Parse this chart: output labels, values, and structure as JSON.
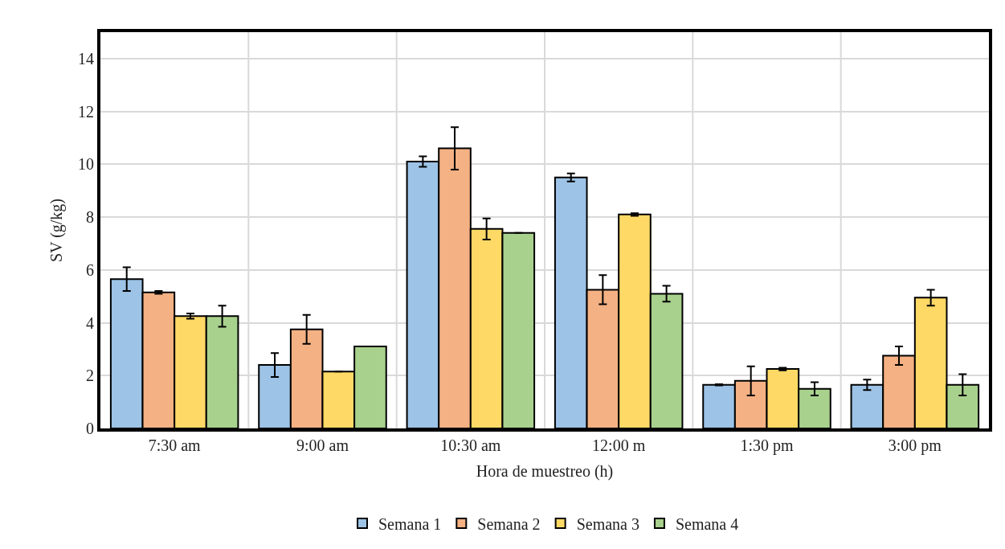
{
  "chart_data": {
    "type": "bar",
    "xlabel": "Hora de muestreo (h)",
    "ylabel": "SV (g/kg)",
    "categories": [
      "7:30 am",
      "9:00 am",
      "10:30 am",
      "12:00 m",
      "1:30 pm",
      "3:00 pm"
    ],
    "series": [
      {
        "name": "Semana 1",
        "color": "#9dc3e6",
        "values": [
          5.65,
          2.4,
          10.1,
          9.5,
          1.65,
          1.65
        ],
        "errors": [
          0.45,
          0.45,
          0.2,
          0.15,
          0.02,
          0.2
        ]
      },
      {
        "name": "Semana 2",
        "color": "#f4b183",
        "values": [
          5.15,
          3.75,
          10.6,
          5.25,
          1.8,
          2.75
        ],
        "errors": [
          0.05,
          0.55,
          0.8,
          0.55,
          0.55,
          0.35
        ]
      },
      {
        "name": "Semana 3",
        "color": "#ffd966",
        "values": [
          4.25,
          2.15,
          7.55,
          8.1,
          2.25,
          4.95
        ],
        "errors": [
          0.1,
          null,
          0.4,
          0.05,
          0.05,
          0.3
        ]
      },
      {
        "name": "Semana 4",
        "color": "#a9d18e",
        "values": [
          4.25,
          3.1,
          7.4,
          5.1,
          1.5,
          1.65
        ],
        "errors": [
          0.4,
          null,
          null,
          0.3,
          0.25,
          0.4
        ]
      }
    ],
    "ylim": [
      0,
      15
    ],
    "yticks": [
      0,
      2,
      4,
      6,
      8,
      10,
      12,
      14
    ],
    "grid": true,
    "legend": "bottom"
  }
}
